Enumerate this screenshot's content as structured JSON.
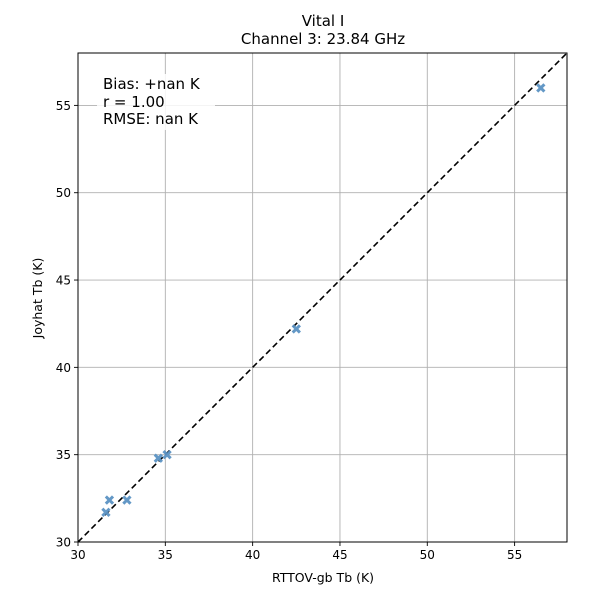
{
  "chart_data": {
    "type": "scatter",
    "title": "Vital I",
    "subtitle": "Channel 3: 23.84 GHz",
    "xlabel": "RTTOV-gb Tb (K)",
    "ylabel": "Joyhat Tb (K)",
    "xlim": [
      30,
      58
    ],
    "ylim": [
      30,
      58
    ],
    "xticks": [
      30,
      35,
      40,
      45,
      50,
      55
    ],
    "yticks": [
      30,
      35,
      40,
      45,
      50,
      55
    ],
    "grid": true,
    "marker": "x",
    "marker_color": "#5b93c4",
    "reference_line": "y = x",
    "stats": [
      "Bias: +nan K",
      "r = 1.00",
      "RMSE: nan K"
    ],
    "points": [
      {
        "x": 31.6,
        "y": 31.7
      },
      {
        "x": 31.8,
        "y": 32.4
      },
      {
        "x": 32.8,
        "y": 32.4
      },
      {
        "x": 34.6,
        "y": 34.8
      },
      {
        "x": 35.1,
        "y": 35.0
      },
      {
        "x": 42.5,
        "y": 42.2
      },
      {
        "x": 56.5,
        "y": 56.0
      }
    ]
  }
}
